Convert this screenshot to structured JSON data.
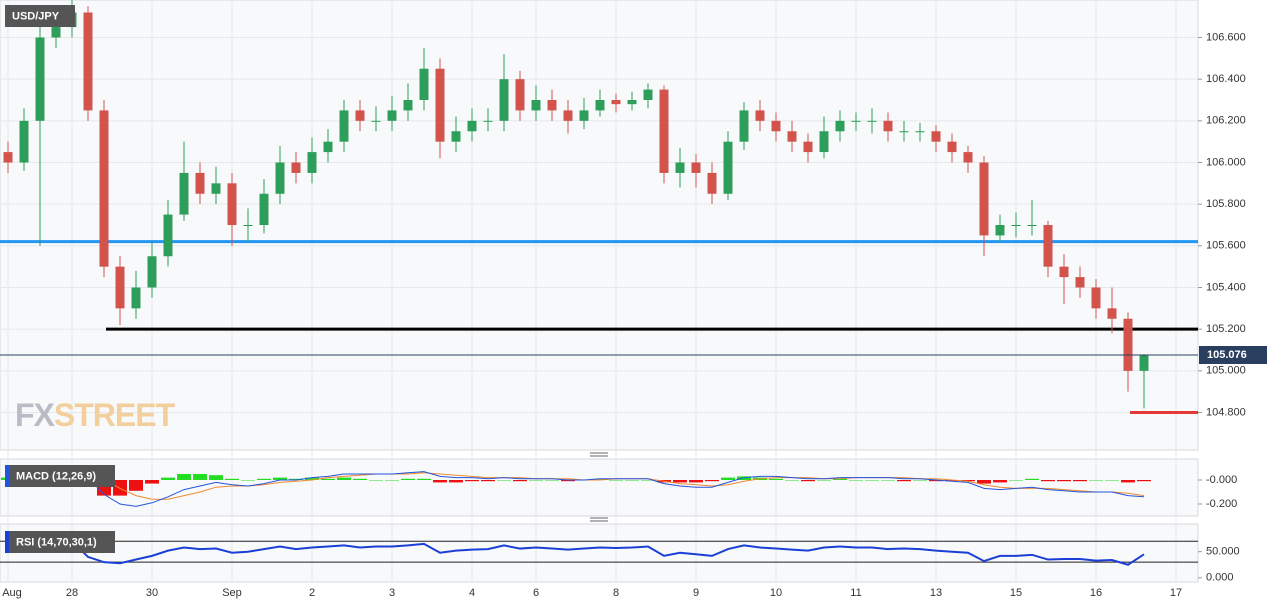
{
  "chart_data": {
    "type": "candlestick",
    "title": "USD/JPY",
    "watermark": {
      "left": "FX",
      "right": "STREET"
    },
    "categories": [
      "Aug",
      null,
      null,
      null,
      "28",
      null,
      null,
      null,
      null,
      "30",
      null,
      null,
      null,
      null,
      "Sep",
      null,
      null,
      null,
      null,
      "2",
      null,
      null,
      null,
      null,
      "3",
      null,
      null,
      null,
      null,
      "4",
      null,
      null,
      null,
      "6",
      null,
      null,
      null,
      null,
      "8",
      null,
      null,
      null,
      null,
      "9",
      null,
      null,
      null,
      null,
      "10",
      null,
      null,
      null,
      null,
      "11",
      null,
      null,
      null,
      null,
      "13",
      null,
      null,
      null,
      null,
      "15",
      null,
      null,
      null,
      null,
      "16",
      null,
      null,
      null,
      null,
      "17"
    ],
    "open": [
      106.05,
      106.0,
      106.2,
      106.6,
      106.65,
      106.72,
      106.25,
      105.5,
      105.3,
      105.4,
      105.55,
      105.75,
      105.95,
      105.85,
      105.9,
      105.7,
      105.7,
      105.85,
      106.0,
      105.95,
      106.05,
      106.1,
      106.25,
      106.2,
      106.2,
      106.25,
      106.3,
      106.45,
      106.1,
      106.15,
      106.2,
      106.2,
      106.4,
      106.25,
      106.3,
      106.25,
      106.2,
      106.25,
      106.3,
      106.28,
      106.3,
      106.35,
      105.95,
      106.0,
      105.95,
      105.85,
      106.1,
      106.25,
      106.2,
      106.15,
      106.1,
      106.05,
      106.15,
      106.2,
      106.2,
      106.2,
      106.15,
      106.15,
      106.15,
      106.1,
      106.05,
      106.0,
      105.65,
      105.7,
      105.7,
      105.7,
      105.5,
      105.45,
      105.4,
      105.3,
      105.25,
      105.0,
      null,
      null
    ],
    "high": [
      106.1,
      106.26,
      106.66,
      106.72,
      106.78,
      106.75,
      106.3,
      105.55,
      105.48,
      105.62,
      105.82,
      106.1,
      106.0,
      105.98,
      105.95,
      105.78,
      105.92,
      106.08,
      106.05,
      106.12,
      106.16,
      106.3,
      106.3,
      106.27,
      106.32,
      106.38,
      106.55,
      106.5,
      106.22,
      106.26,
      106.26,
      106.52,
      106.44,
      106.37,
      106.35,
      106.3,
      106.31,
      106.35,
      106.33,
      106.34,
      106.38,
      106.37,
      106.07,
      106.04,
      106.0,
      106.15,
      106.29,
      106.3,
      106.24,
      106.2,
      106.14,
      106.22,
      106.25,
      106.24,
      106.26,
      106.24,
      106.2,
      106.19,
      106.18,
      106.14,
      106.08,
      106.03,
      105.75,
      105.76,
      105.82,
      105.72,
      105.56,
      105.5,
      105.44,
      105.4,
      105.28,
      105.08,
      null,
      null
    ],
    "low": [
      105.95,
      105.96,
      105.6,
      106.55,
      106.6,
      106.2,
      105.45,
      105.22,
      105.25,
      105.35,
      105.5,
      105.72,
      105.8,
      105.8,
      105.6,
      105.62,
      105.66,
      105.8,
      105.9,
      105.9,
      106.0,
      106.05,
      106.15,
      106.15,
      106.15,
      106.2,
      106.25,
      106.02,
      106.05,
      106.1,
      106.15,
      106.15,
      106.2,
      106.2,
      106.2,
      106.14,
      106.16,
      106.22,
      106.24,
      106.25,
      106.26,
      105.9,
      105.88,
      105.88,
      105.8,
      105.82,
      106.06,
      106.15,
      106.1,
      106.05,
      106.0,
      106.02,
      106.1,
      106.15,
      106.14,
      106.1,
      106.1,
      106.1,
      106.05,
      106.0,
      105.95,
      105.55,
      105.62,
      105.64,
      105.65,
      105.45,
      105.32,
      105.35,
      105.25,
      105.18,
      104.9,
      104.82,
      null,
      null
    ],
    "close": [
      106.0,
      106.2,
      106.6,
      106.65,
      106.72,
      106.25,
      105.5,
      105.3,
      105.4,
      105.55,
      105.75,
      105.95,
      105.85,
      105.9,
      105.7,
      105.7,
      105.85,
      106.0,
      105.95,
      106.05,
      106.1,
      106.25,
      106.2,
      106.2,
      106.25,
      106.3,
      106.45,
      106.1,
      106.15,
      106.2,
      106.2,
      106.4,
      106.25,
      106.3,
      106.25,
      106.2,
      106.25,
      106.3,
      106.28,
      106.3,
      106.35,
      105.95,
      106.0,
      105.95,
      105.85,
      106.1,
      106.25,
      106.2,
      106.15,
      106.1,
      106.05,
      106.15,
      106.2,
      106.2,
      106.2,
      106.15,
      106.15,
      106.15,
      106.1,
      106.05,
      106.0,
      105.65,
      105.7,
      105.7,
      105.7,
      105.5,
      105.45,
      105.4,
      105.3,
      105.25,
      105.0,
      105.076,
      null,
      null
    ],
    "up_color": "#2e9e5b",
    "down_color": "#d2524c",
    "ylim": [
      104.62,
      106.78
    ],
    "yticks": [
      {
        "value": 104.8,
        "label": "104.800"
      },
      {
        "value": 105.0,
        "label": "105.000"
      },
      {
        "value": 105.2,
        "label": "105.200"
      },
      {
        "value": 105.4,
        "label": "105.400"
      },
      {
        "value": 105.6,
        "label": "105.600"
      },
      {
        "value": 105.8,
        "label": "105.800"
      },
      {
        "value": 106.0,
        "label": "106.000"
      },
      {
        "value": 106.2,
        "label": "106.200"
      },
      {
        "value": 106.4,
        "label": "106.400"
      },
      {
        "value": 106.6,
        "label": "106.600"
      }
    ],
    "grid": true,
    "levels": [
      {
        "value": 105.62,
        "color": "#2196f3"
      },
      {
        "value": 105.2,
        "color": "#000000"
      },
      {
        "value": 104.8,
        "color": "#e53935"
      }
    ],
    "last_price": 105.076,
    "macd": {
      "title": "MACD (12,26,9)",
      "ylim": [
        -0.3,
        0.175
      ],
      "yticks": [
        {
          "value": 0,
          "label": "-0.000"
        },
        {
          "value": -0.2,
          "label": "-0.200"
        }
      ],
      "line": [
        0.05,
        0.08,
        0.1,
        0.12,
        0.11,
        0.02,
        -0.12,
        -0.2,
        -0.22,
        -0.19,
        -0.14,
        -0.08,
        -0.05,
        -0.02,
        -0.04,
        -0.05,
        -0.03,
        0.0,
        0.0,
        0.02,
        0.03,
        0.05,
        0.05,
        0.05,
        0.05,
        0.06,
        0.07,
        0.03,
        0.02,
        0.02,
        0.01,
        0.02,
        0.01,
        0.01,
        0.01,
        0.0,
        0.0,
        0.01,
        0.01,
        0.01,
        0.01,
        -0.03,
        -0.05,
        -0.06,
        -0.06,
        -0.02,
        0.02,
        0.03,
        0.03,
        0.02,
        0.01,
        0.01,
        0.02,
        0.02,
        0.02,
        0.02,
        0.01,
        0.01,
        0.0,
        -0.01,
        -0.02,
        -0.07,
        -0.08,
        -0.07,
        -0.06,
        -0.08,
        -0.09,
        -0.1,
        -0.1,
        -0.1,
        -0.13,
        -0.14,
        null,
        null
      ],
      "signal": [
        0.03,
        0.05,
        0.07,
        0.09,
        0.1,
        0.07,
        0.01,
        -0.07,
        -0.13,
        -0.16,
        -0.16,
        -0.13,
        -0.1,
        -0.06,
        -0.05,
        -0.05,
        -0.04,
        -0.02,
        -0.01,
        0.0,
        0.02,
        0.03,
        0.04,
        0.05,
        0.05,
        0.05,
        0.06,
        0.05,
        0.04,
        0.03,
        0.02,
        0.02,
        0.02,
        0.01,
        0.01,
        0.01,
        0.0,
        0.0,
        0.01,
        0.01,
        0.01,
        -0.01,
        -0.03,
        -0.04,
        -0.05,
        -0.04,
        -0.01,
        0.01,
        0.02,
        0.02,
        0.02,
        0.01,
        0.01,
        0.02,
        0.02,
        0.02,
        0.02,
        0.01,
        0.01,
        0.0,
        -0.01,
        -0.04,
        -0.06,
        -0.07,
        -0.07,
        -0.07,
        -0.08,
        -0.09,
        -0.1,
        -0.1,
        -0.11,
        -0.13,
        null,
        null
      ],
      "histogram": [
        0.02,
        0.03,
        0.03,
        0.03,
        0.01,
        -0.05,
        -0.13,
        -0.13,
        -0.09,
        -0.03,
        0.02,
        0.05,
        0.05,
        0.04,
        0.01,
        0.0,
        0.01,
        0.02,
        0.01,
        0.02,
        0.01,
        0.02,
        0.01,
        0.0,
        0.0,
        0.01,
        0.01,
        -0.02,
        -0.02,
        -0.01,
        -0.01,
        0.0,
        -0.01,
        0.0,
        0.0,
        -0.01,
        0.0,
        0.01,
        0.0,
        0.0,
        0.0,
        -0.02,
        -0.02,
        -0.02,
        -0.01,
        0.02,
        0.03,
        0.02,
        0.01,
        0.0,
        -0.01,
        0.0,
        0.01,
        0.0,
        0.0,
        0.0,
        -0.01,
        0.0,
        -0.01,
        -0.01,
        -0.01,
        -0.03,
        -0.02,
        0.0,
        0.01,
        -0.01,
        -0.01,
        -0.01,
        0.0,
        0.0,
        -0.02,
        -0.01,
        null,
        null
      ],
      "line_color": "#2255dd",
      "signal_color": "#f08a30",
      "pos_color": "#22dd22",
      "neg_color": "#ee1111"
    },
    "rsi": {
      "title": "RSI (14,70,30,1)",
      "ylim": [
        -8,
        103
      ],
      "yticks": [
        {
          "value": 0,
          "label": "0.000"
        },
        {
          "value": 50,
          "label": "50.000"
        }
      ],
      "levels": [
        70,
        30
      ],
      "values": [
        60,
        65,
        75,
        72,
        70,
        40,
        30,
        28,
        35,
        42,
        52,
        58,
        55,
        56,
        48,
        50,
        55,
        60,
        55,
        58,
        60,
        62,
        58,
        60,
        60,
        62,
        65,
        48,
        52,
        54,
        55,
        62,
        56,
        58,
        56,
        54,
        56,
        58,
        57,
        58,
        60,
        42,
        48,
        45,
        42,
        55,
        62,
        58,
        56,
        54,
        52,
        58,
        60,
        58,
        58,
        55,
        56,
        55,
        52,
        50,
        48,
        32,
        42,
        42,
        44,
        35,
        36,
        36,
        33,
        34,
        25,
        45,
        null,
        null
      ],
      "color": "#1b3fd6"
    }
  }
}
